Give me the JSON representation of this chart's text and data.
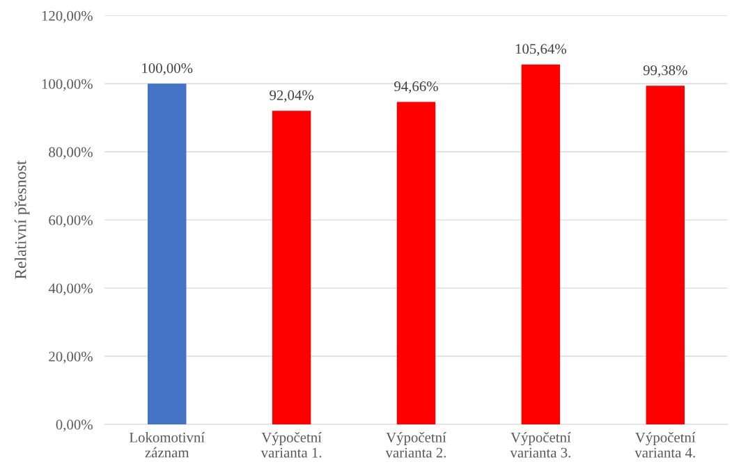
{
  "chart_data": {
    "type": "bar",
    "ylabel": "Relativní přesnost",
    "categories": [
      "Lokomotivní\nzáznam",
      "Výpočetní\nvarianta 1.",
      "Výpočetní\nvarianta 2.",
      "Výpočetní\nvarianta 3.",
      "Výpočetní\nvarianta 4."
    ],
    "values": [
      100.0,
      92.04,
      94.66,
      105.64,
      99.38
    ],
    "colors": [
      "#4472c4",
      "#ff0000",
      "#ff0000",
      "#ff0000",
      "#ff0000"
    ],
    "value_labels": [
      "100,00%",
      "92,04%",
      "94,66%",
      "105,64%",
      "99,38%"
    ],
    "ylim": [
      0,
      120
    ],
    "yticks": [
      {
        "value": 0,
        "label": "0,00%"
      },
      {
        "value": 20,
        "label": "20,00%"
      },
      {
        "value": 40,
        "label": "40,00%"
      },
      {
        "value": 60,
        "label": "60,00%"
      },
      {
        "value": 80,
        "label": "80,00%"
      },
      {
        "value": 100,
        "label": "100,00%"
      },
      {
        "value": 120,
        "label": "120,00%"
      }
    ],
    "grid": "y",
    "legend": false
  }
}
